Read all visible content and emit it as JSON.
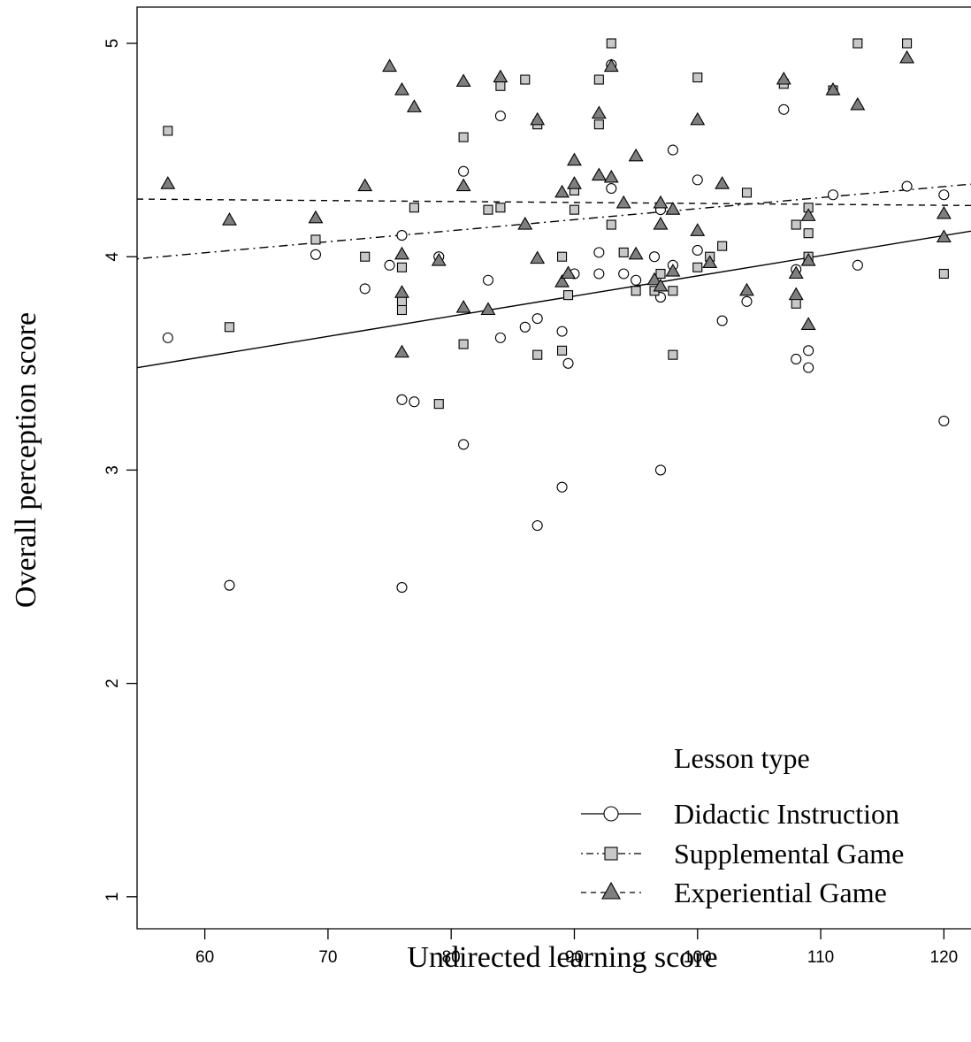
{
  "chart_data": {
    "type": "scatter",
    "title": "",
    "xlabel": "Undirected learning score",
    "ylabel": "Overall perception score",
    "xlim": [
      54.5,
      122.2
    ],
    "ylim": [
      0.85,
      5.17
    ],
    "x_ticks": [
      60,
      70,
      80,
      90,
      100,
      110,
      120
    ],
    "y_ticks": [
      1,
      2,
      3,
      4,
      5
    ],
    "grid": false,
    "legend": {
      "title": "Lesson type",
      "placement": "bottom-right"
    },
    "colors": {
      "didactic_fill": "#ffffff",
      "supplemental_fill": "#c8c8c8",
      "experiential_fill": "#7f7f7f",
      "stroke": "#000000"
    },
    "series": [
      {
        "name": "Didactic Instruction",
        "marker": "circle",
        "line_style": "solid",
        "trend": {
          "x": [
            54.5,
            122.2
          ],
          "y": [
            3.48,
            4.12
          ]
        },
        "points": [
          [
            57,
            3.62
          ],
          [
            62,
            2.46
          ],
          [
            69,
            4.01
          ],
          [
            73,
            3.85
          ],
          [
            75,
            3.96
          ],
          [
            76,
            4.1
          ],
          [
            76,
            3.33
          ],
          [
            76,
            2.45
          ],
          [
            77,
            3.32
          ],
          [
            79,
            4.0
          ],
          [
            81,
            4.4
          ],
          [
            81,
            3.12
          ],
          [
            83,
            3.89
          ],
          [
            84,
            4.66
          ],
          [
            84,
            3.62
          ],
          [
            86,
            3.67
          ],
          [
            87,
            3.71
          ],
          [
            87,
            2.74
          ],
          [
            89,
            3.65
          ],
          [
            89,
            2.92
          ],
          [
            89.5,
            3.5
          ],
          [
            90,
            3.92
          ],
          [
            92,
            4.02
          ],
          [
            92,
            3.92
          ],
          [
            93,
            4.9
          ],
          [
            93,
            4.32
          ],
          [
            94,
            3.92
          ],
          [
            95,
            3.89
          ],
          [
            96.5,
            4.0
          ],
          [
            97,
            4.22
          ],
          [
            97,
            3.81
          ],
          [
            97,
            3.0
          ],
          [
            98,
            4.5
          ],
          [
            98,
            3.96
          ],
          [
            100,
            4.36
          ],
          [
            100,
            4.03
          ],
          [
            102,
            3.7
          ],
          [
            104,
            3.79
          ],
          [
            107,
            4.69
          ],
          [
            108,
            3.94
          ],
          [
            108,
            3.52
          ],
          [
            109,
            3.56
          ],
          [
            109,
            3.48
          ],
          [
            111,
            4.29
          ],
          [
            113,
            3.96
          ],
          [
            117,
            4.33
          ],
          [
            120,
            4.29
          ],
          [
            120,
            3.23
          ]
        ]
      },
      {
        "name": "Supplemental Game",
        "marker": "square",
        "line_style": "dotdash",
        "trend": {
          "x": [
            54.5,
            122.2
          ],
          "y": [
            3.99,
            4.34
          ]
        },
        "points": [
          [
            57,
            4.59
          ],
          [
            62,
            3.67
          ],
          [
            69,
            4.08
          ],
          [
            73,
            4.0
          ],
          [
            76,
            3.95
          ],
          [
            76,
            3.79
          ],
          [
            76,
            3.75
          ],
          [
            77,
            4.23
          ],
          [
            79,
            3.31
          ],
          [
            81,
            4.56
          ],
          [
            81,
            3.59
          ],
          [
            83,
            4.22
          ],
          [
            84,
            4.8
          ],
          [
            84,
            4.23
          ],
          [
            86,
            4.83
          ],
          [
            87,
            4.62
          ],
          [
            87,
            3.54
          ],
          [
            89,
            4.0
          ],
          [
            89,
            3.56
          ],
          [
            89.5,
            3.82
          ],
          [
            90,
            4.31
          ],
          [
            90,
            4.22
          ],
          [
            92,
            4.83
          ],
          [
            92,
            4.62
          ],
          [
            93,
            5.0
          ],
          [
            93,
            4.15
          ],
          [
            94,
            4.02
          ],
          [
            95,
            3.84
          ],
          [
            96.5,
            3.84
          ],
          [
            97,
            3.92
          ],
          [
            98,
            3.84
          ],
          [
            98,
            3.54
          ],
          [
            100,
            4.84
          ],
          [
            100,
            3.95
          ],
          [
            101,
            4.0
          ],
          [
            102,
            4.05
          ],
          [
            104,
            4.3
          ],
          [
            107,
            4.81
          ],
          [
            108,
            4.15
          ],
          [
            108,
            3.78
          ],
          [
            109,
            4.23
          ],
          [
            109,
            4.11
          ],
          [
            109,
            4.0
          ],
          [
            111,
            4.78
          ],
          [
            113,
            5.0
          ],
          [
            117,
            5.0
          ],
          [
            120,
            3.92
          ]
        ]
      },
      {
        "name": "Experiential Game",
        "marker": "triangle",
        "line_style": "dashed",
        "trend": {
          "x": [
            54.5,
            122.2
          ],
          "y": [
            4.27,
            4.24
          ]
        },
        "points": [
          [
            57,
            4.34
          ],
          [
            62,
            4.17
          ],
          [
            69,
            4.18
          ],
          [
            73,
            4.33
          ],
          [
            75,
            4.89
          ],
          [
            76,
            4.78
          ],
          [
            76,
            4.01
          ],
          [
            76,
            3.83
          ],
          [
            76,
            3.55
          ],
          [
            77,
            4.7
          ],
          [
            79,
            3.98
          ],
          [
            81,
            4.82
          ],
          [
            81,
            4.33
          ],
          [
            81,
            3.76
          ],
          [
            83,
            3.75
          ],
          [
            84,
            4.84
          ],
          [
            86,
            4.15
          ],
          [
            87,
            4.64
          ],
          [
            87,
            3.99
          ],
          [
            89,
            4.3
          ],
          [
            89,
            3.88
          ],
          [
            89.5,
            3.92
          ],
          [
            90,
            4.45
          ],
          [
            90,
            4.34
          ],
          [
            92,
            4.67
          ],
          [
            92,
            4.38
          ],
          [
            93,
            4.89
          ],
          [
            93,
            4.37
          ],
          [
            94,
            4.25
          ],
          [
            95,
            4.47
          ],
          [
            95,
            4.01
          ],
          [
            96.5,
            3.89
          ],
          [
            97,
            4.25
          ],
          [
            97,
            4.15
          ],
          [
            97,
            3.86
          ],
          [
            98,
            4.22
          ],
          [
            98,
            3.93
          ],
          [
            100,
            4.64
          ],
          [
            100,
            4.12
          ],
          [
            101,
            3.97
          ],
          [
            102,
            4.34
          ],
          [
            104,
            3.84
          ],
          [
            107,
            4.83
          ],
          [
            108,
            3.92
          ],
          [
            108,
            3.82
          ],
          [
            109,
            4.19
          ],
          [
            109,
            3.98
          ],
          [
            109,
            3.68
          ],
          [
            111,
            4.78
          ],
          [
            113,
            4.71
          ],
          [
            117,
            4.93
          ],
          [
            120,
            4.2
          ],
          [
            120,
            4.09
          ]
        ]
      }
    ]
  }
}
